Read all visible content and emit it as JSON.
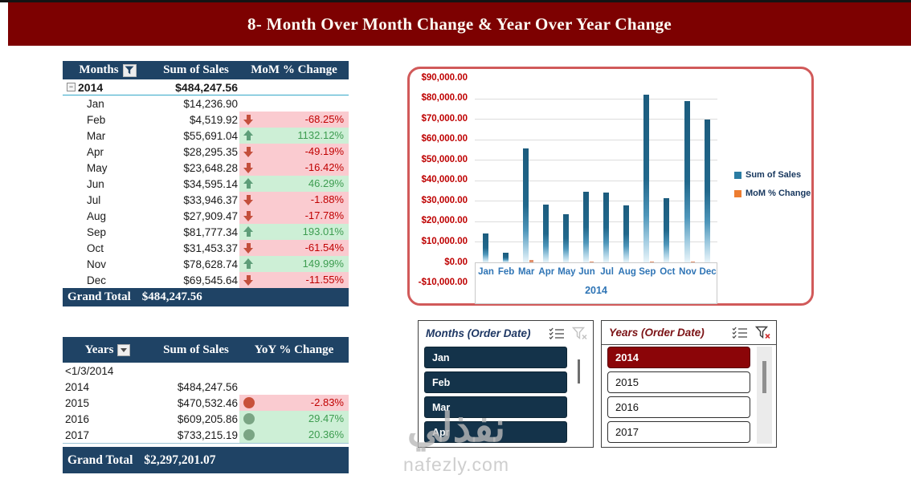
{
  "banner": {
    "title": "8- Month Over Month Change & Year Over Year Change"
  },
  "months_table": {
    "columns": [
      "Months",
      "Sum of Sales",
      "MoM % Change"
    ],
    "group": {
      "year": "2014",
      "total": "$484,247.56",
      "collapse_glyph": "−"
    },
    "rows": [
      {
        "month": "Jan",
        "sales": "$14,236.90",
        "change": "",
        "trend": "none"
      },
      {
        "month": "Feb",
        "sales": "$4,519.92",
        "change": "-68.25%",
        "trend": "down"
      },
      {
        "month": "Mar",
        "sales": "$55,691.04",
        "change": "1132.12%",
        "trend": "up"
      },
      {
        "month": "Apr",
        "sales": "$28,295.35",
        "change": "-49.19%",
        "trend": "down"
      },
      {
        "month": "May",
        "sales": "$23,648.28",
        "change": "-16.42%",
        "trend": "down"
      },
      {
        "month": "Jun",
        "sales": "$34,595.14",
        "change": "46.29%",
        "trend": "up"
      },
      {
        "month": "Jul",
        "sales": "$33,946.37",
        "change": "-1.88%",
        "trend": "down"
      },
      {
        "month": "Aug",
        "sales": "$27,909.47",
        "change": "-17.78%",
        "trend": "down"
      },
      {
        "month": "Sep",
        "sales": "$81,777.34",
        "change": "193.01%",
        "trend": "up"
      },
      {
        "month": "Oct",
        "sales": "$31,453.37",
        "change": "-61.54%",
        "trend": "down"
      },
      {
        "month": "Nov",
        "sales": "$78,628.74",
        "change": "149.99%",
        "trend": "up"
      },
      {
        "month": "Dec",
        "sales": "$69,545.64",
        "change": "-11.55%",
        "trend": "down"
      }
    ],
    "grand_total": {
      "label": "Grand Total",
      "value": "$484,247.56"
    }
  },
  "years_table": {
    "columns": [
      "Years",
      "Sum of Sales",
      "YoY % Change"
    ],
    "rows": [
      {
        "year": "<1/3/2014",
        "sales": "",
        "change": "",
        "trend": "none"
      },
      {
        "year": "2014",
        "sales": "$484,247.56",
        "change": "",
        "trend": "none"
      },
      {
        "year": "2015",
        "sales": "$470,532.46",
        "change": "-2.83%",
        "trend": "down"
      },
      {
        "year": "2016",
        "sales": "$609,205.86",
        "change": "29.47%",
        "trend": "up"
      },
      {
        "year": "2017",
        "sales": "$733,215.19",
        "change": "20.36%",
        "trend": "up"
      }
    ],
    "grand_total": {
      "label": "Grand Total",
      "value": "$2,297,201.07"
    }
  },
  "chart_data": {
    "type": "bar",
    "title": "",
    "categories": [
      "Jan",
      "Feb",
      "Mar",
      "Apr",
      "May",
      "Jun",
      "Jul",
      "Aug",
      "Sep",
      "Oct",
      "Nov",
      "Dec"
    ],
    "series": [
      {
        "name": "Sum of Sales",
        "color": "#1D5E80",
        "values": [
          14236.9,
          4519.92,
          55691.04,
          28295.35,
          23648.28,
          34595.14,
          33946.37,
          27909.47,
          81777.34,
          31453.37,
          78628.74,
          69545.64
        ]
      },
      {
        "name": "MoM % Change",
        "color": "#ED7D31",
        "values": [
          null,
          -68.25,
          1132.12,
          -49.19,
          -16.42,
          46.29,
          -1.88,
          -17.78,
          193.01,
          -61.54,
          149.99,
          -11.55
        ]
      }
    ],
    "x_group_label": "2014",
    "y_ticks": [
      "$90,000.00",
      "$80,000.00",
      "$70,000.00",
      "$60,000.00",
      "$50,000.00",
      "$40,000.00",
      "$30,000.00",
      "$20,000.00",
      "$10,000.00",
      "$0.00",
      "-$10,000.00"
    ],
    "ylim": [
      -10000,
      90000
    ],
    "grid": true,
    "legend_position": "right"
  },
  "slicers": {
    "months": {
      "title": "Months (Order Date)",
      "items": [
        "Jan",
        "Feb",
        "Mar",
        "Apr"
      ],
      "selected": [
        "Jan",
        "Feb",
        "Mar",
        "Apr"
      ]
    },
    "years": {
      "title": "Years (Order Date)",
      "items": [
        "2014",
        "2015",
        "2016",
        "2017"
      ],
      "selected": [
        "2014"
      ]
    }
  },
  "watermark": {
    "logo": "نفذلي",
    "site": "nafezly.com"
  },
  "colors": {
    "banner-red": "#7D0101",
    "table-header": "#1F4365",
    "group-separator": "#35A7C8",
    "negative-bg": "#FACBD0",
    "negative-text": "#C00000",
    "positive-bg": "#CDEFD6",
    "positive-text": "#3D9C50",
    "arrow-down": "#C44F3C",
    "arrow-up": "#5E9E79",
    "dot-down": "#C8503A",
    "dot-up": "#7AA584",
    "chart-border": "#D15A5A",
    "y-label": "#BE0000",
    "x-label": "#2E74B5",
    "bar-color": "#2A7CA3",
    "mom-color": "#ED7D31",
    "slicer-month-item": "#14334A",
    "slicer-year-selected": "#8B0508",
    "months-slicer-title": "#1F3864",
    "years-slicer-title": "#7B1215"
  }
}
